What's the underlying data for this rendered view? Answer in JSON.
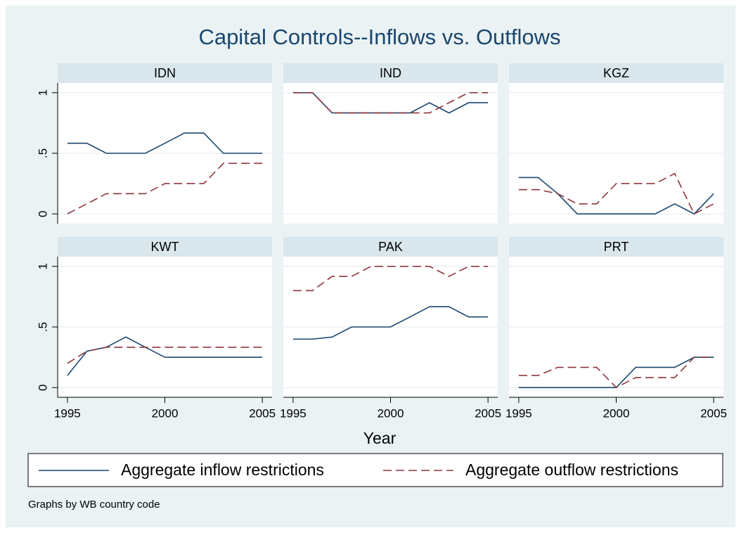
{
  "chart_data": {
    "type": "line",
    "title": "Capital Controls--Inflows vs. Outflows",
    "x_label": "Year",
    "note": "Graphs by WB country code",
    "x": [
      1995,
      1996,
      1997,
      1998,
      1999,
      2000,
      2001,
      2002,
      2003,
      2004,
      2005
    ],
    "xlim": [
      1994.5,
      2005.5
    ],
    "xticks": [
      1995,
      2000,
      2005
    ],
    "ylim": [
      -0.08,
      1.08
    ],
    "yticks": [
      0,
      {
        "value": 0.5,
        "label": ".5"
      },
      1
    ],
    "grid": true,
    "series": [
      {
        "name": "Aggregate inflow restrictions",
        "color": "#1a476f",
        "dash": "none"
      },
      {
        "name": "Aggregate outflow restrictions",
        "color": "#90353b",
        "dash": "12 6"
      }
    ],
    "panels": [
      {
        "title": "IDN",
        "values": [
          [
            0.583,
            0.583,
            0.5,
            0.5,
            0.5,
            0.583,
            0.667,
            0.667,
            0.5,
            0.5,
            0.5
          ],
          [
            0,
            0.083,
            0.167,
            0.167,
            0.167,
            0.25,
            0.25,
            0.25,
            0.417,
            0.417,
            0.417
          ]
        ]
      },
      {
        "title": "IND",
        "values": [
          [
            1,
            1,
            0.833,
            0.833,
            0.833,
            0.833,
            0.833,
            0.917,
            0.833,
            0.917,
            0.917
          ],
          [
            1,
            1,
            0.833,
            0.833,
            0.833,
            0.833,
            0.833,
            0.833,
            0.917,
            1,
            1
          ]
        ]
      },
      {
        "title": "KGZ",
        "values": [
          [
            0.3,
            0.3,
            0.167,
            0,
            0,
            0,
            0,
            0,
            0.083,
            0,
            0.167
          ],
          [
            0.2,
            0.2,
            0.167,
            0.083,
            0.083,
            0.25,
            0.25,
            0.25,
            0.333,
            0,
            0.083
          ]
        ]
      },
      {
        "title": "KWT",
        "values": [
          [
            0.1,
            0.3,
            0.333,
            0.417,
            0.333,
            0.25,
            0.25,
            0.25,
            0.25,
            0.25,
            0.25
          ],
          [
            0.2,
            0.3,
            0.333,
            0.333,
            0.333,
            0.333,
            0.333,
            0.333,
            0.333,
            0.333,
            0.333
          ]
        ]
      },
      {
        "title": "PAK",
        "values": [
          [
            0.4,
            0.4,
            0.417,
            0.5,
            0.5,
            0.5,
            0.583,
            0.667,
            0.667,
            0.583,
            0.583
          ],
          [
            0.8,
            0.8,
            0.917,
            0.917,
            1,
            1,
            1,
            1,
            0.917,
            1,
            1
          ]
        ]
      },
      {
        "title": "PRT",
        "values": [
          [
            0,
            0,
            0,
            0,
            0,
            0,
            0.167,
            0.167,
            0.167,
            0.25,
            0.25
          ],
          [
            0.1,
            0.1,
            0.167,
            0.167,
            0.167,
            0,
            0.083,
            0.083,
            0.083,
            0.25,
            0.25
          ]
        ]
      }
    ]
  }
}
